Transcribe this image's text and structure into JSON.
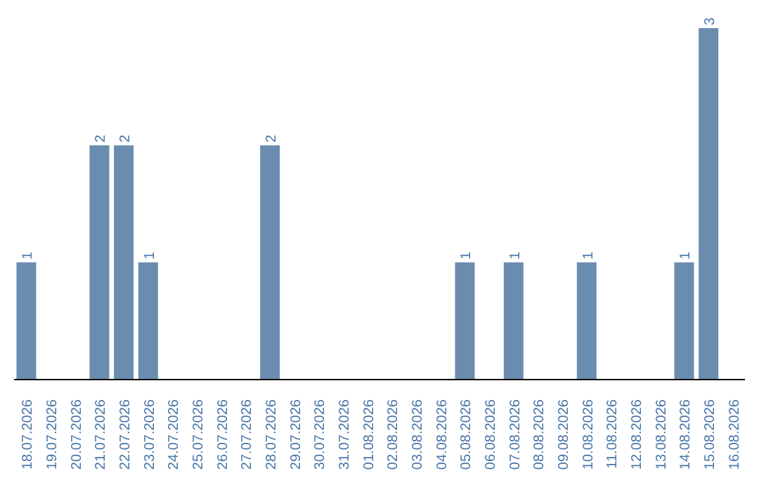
{
  "chart_data": {
    "type": "bar",
    "categories": [
      "18.07.2026",
      "19.07.2026",
      "20.07.2026",
      "21.07.2026",
      "22.07.2026",
      "23.07.2026",
      "24.07.2026",
      "25.07.2026",
      "26.07.2026",
      "27.07.2026",
      "28.07.2026",
      "29.07.2026",
      "30.07.2026",
      "31.07.2026",
      "01.08.2026",
      "02.08.2026",
      "03.08.2026",
      "04.08.2026",
      "05.08.2026",
      "06.08.2026",
      "07.08.2026",
      "08.08.2026",
      "09.08.2026",
      "10.08.2026",
      "11.08.2026",
      "12.08.2026",
      "13.08.2026",
      "14.08.2026",
      "15.08.2026",
      "16.08.2026"
    ],
    "values": [
      1,
      0,
      0,
      2,
      2,
      1,
      0,
      0,
      0,
      0,
      2,
      0,
      0,
      0,
      0,
      0,
      0,
      0,
      1,
      0,
      1,
      0,
      0,
      1,
      0,
      0,
      0,
      1,
      3,
      0
    ],
    "value_labels": [
      "1",
      null,
      null,
      "2",
      "2",
      "1",
      null,
      null,
      null,
      null,
      "2",
      null,
      null,
      null,
      null,
      null,
      null,
      null,
      "1",
      null,
      "1",
      null,
      null,
      "1",
      null,
      null,
      null,
      "1",
      "3",
      null
    ],
    "color": "#6a8caf"
  }
}
